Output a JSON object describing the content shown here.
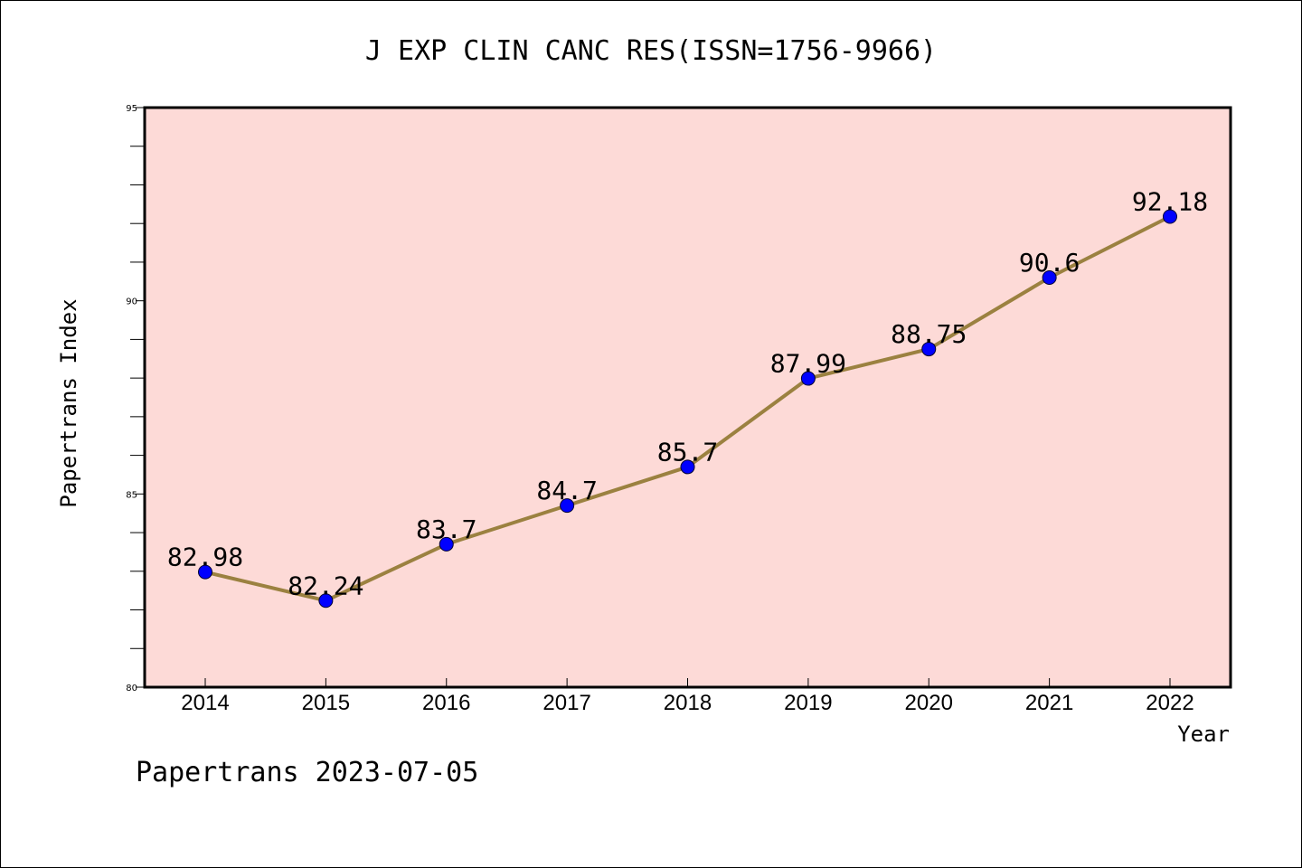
{
  "chart_data": {
    "type": "line",
    "title": "J EXP CLIN CANC RES(ISSN=1756-9966)",
    "xlabel": "Year",
    "ylabel": "Papertrans Index",
    "categories": [
      "2014",
      "2015",
      "2016",
      "2017",
      "2018",
      "2019",
      "2020",
      "2021",
      "2022"
    ],
    "values": [
      82.98,
      82.24,
      83.7,
      84.7,
      85.7,
      87.99,
      88.75,
      90.6,
      92.18
    ],
    "data_labels": [
      "82.98",
      "82.24",
      "83.7",
      "84.7",
      "85.7",
      "87.99",
      "88.75",
      "90.6",
      "92.18"
    ],
    "ylim": [
      80,
      95
    ],
    "yticks": [
      80,
      85,
      90,
      95
    ],
    "ytick_labels": [
      "80",
      "85",
      "90",
      "95"
    ],
    "grid": false,
    "colors": {
      "plot_background": "#fddad7",
      "line": "#9b8140",
      "marker": "#0000ff"
    }
  },
  "footer": "Papertrans 2023-07-05"
}
